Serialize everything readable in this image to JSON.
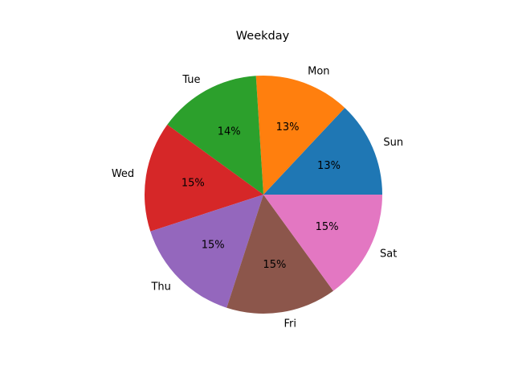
{
  "chart_data": {
    "type": "pie",
    "title": "Weekday",
    "categories": [
      "Sun",
      "Mon",
      "Tue",
      "Wed",
      "Thu",
      "Fri",
      "Sat"
    ],
    "values": [
      13,
      13,
      14,
      15,
      15,
      15,
      15
    ],
    "percent_labels": [
      "13%",
      "13%",
      "14%",
      "15%",
      "15%",
      "15%",
      "15%"
    ],
    "colors": [
      "#1f77b4",
      "#ff7f0e",
      "#2ca02c",
      "#d62728",
      "#9467bd",
      "#8c564b",
      "#e377c2"
    ],
    "start_angle_deg": 0,
    "direction": "counterclockwise"
  }
}
